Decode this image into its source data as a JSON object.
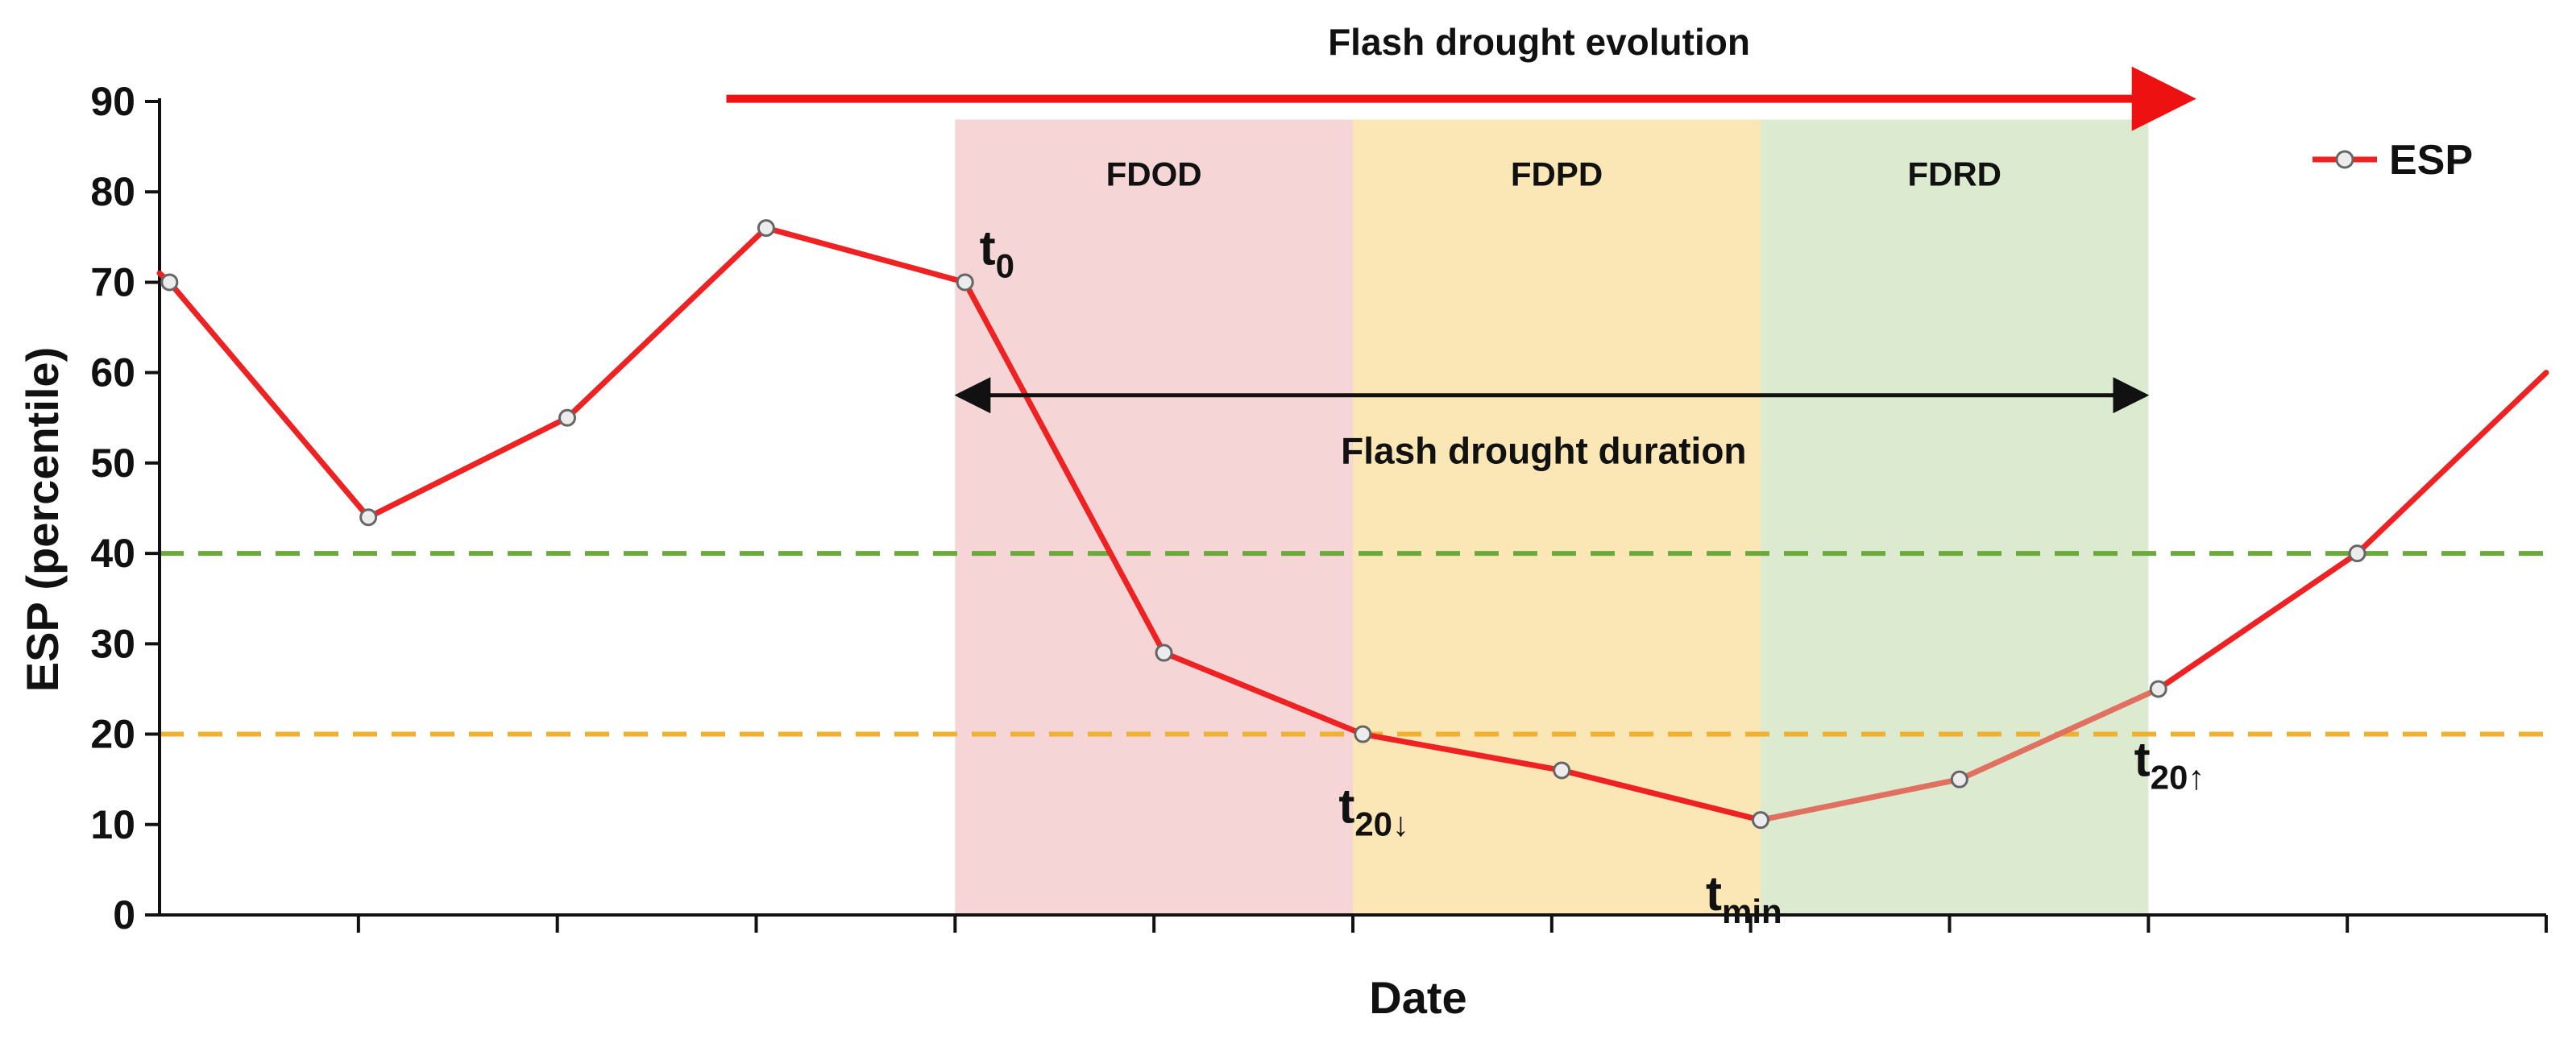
{
  "chart_data": {
    "type": "line",
    "title": "Flash drought evolution",
    "xlabel": "Date",
    "ylabel": "ESP  (percentile)",
    "ylim": [
      0,
      90
    ],
    "xlim": [
      0,
      12
    ],
    "yticks": [
      0,
      10,
      20,
      30,
      40,
      50,
      60,
      70,
      80,
      90
    ],
    "xticks": [
      1,
      2,
      3,
      4,
      5,
      6,
      7,
      8,
      9,
      10,
      11,
      12
    ],
    "grid": false,
    "legend": {
      "position": "top-right",
      "label": "ESP"
    },
    "series": [
      {
        "name": "ESP",
        "color": "#ee2222",
        "x": [
          0.05,
          1.05,
          2.05,
          3.05,
          4.05,
          5.05,
          6.05,
          7.05,
          8.05,
          9.05,
          10.05,
          11.05
        ],
        "y": [
          70,
          44,
          55,
          76,
          70,
          29,
          20,
          16,
          10.5,
          15,
          25,
          40
        ],
        "extension": {
          "x": 12.0,
          "y": 60
        },
        "recovery_color": "#e07060",
        "recovery_from_x": 8.05
      }
    ],
    "thresholds": [
      {
        "value": 40,
        "color": "#6aaa3a",
        "style": "dashed"
      },
      {
        "value": 20,
        "color": "#f0b030",
        "style": "dashed"
      }
    ],
    "phases": [
      {
        "label": "FDOD",
        "x_start": 4.0,
        "x_end": 6.0,
        "color": "#f5d5d5"
      },
      {
        "label": "FDPD",
        "x_start": 6.0,
        "x_end": 8.05,
        "color": "#fbe6b5"
      },
      {
        "label": "FDRD",
        "x_start": 8.05,
        "x_end": 10.0,
        "color": "#dcebd0"
      }
    ],
    "phase_top": 88,
    "evolution_arrow": {
      "x_start": 2.85,
      "x_end": 10.2,
      "y": 90.3,
      "color": "#ee1111",
      "label": "Flash drought evolution"
    },
    "duration_arrow": {
      "x_start": 4.0,
      "x_end": 10.0,
      "y": 57.5,
      "label": "Flash drought duration"
    },
    "point_labels": [
      {
        "base": "t",
        "sub": "0",
        "x": 4.05,
        "y": 70
      },
      {
        "base": "t",
        "sub": "20↓",
        "x": 6.05,
        "y": 20
      },
      {
        "base": "t",
        "sub": "min",
        "x": 8.05,
        "y": 10.5
      },
      {
        "base": "t",
        "sub": "20↑",
        "x": 10.05,
        "y": 25
      }
    ]
  }
}
